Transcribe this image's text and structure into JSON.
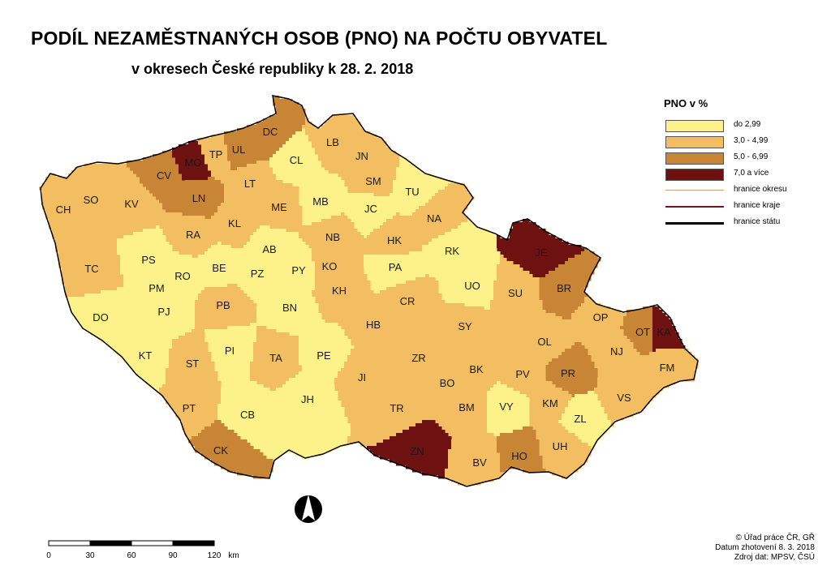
{
  "title": "PODÍL NEZAMĚSTNANÝCH OSOB (PNO) NA POČTU OBYVATEL",
  "subtitle": "v okresech České republiky k 28. 2. 2018",
  "colors": {
    "c1": "#fdf28a",
    "c2": "#f3be62",
    "c3": "#c98536",
    "c4": "#6e1111",
    "district_border": "#c9a080",
    "region_border": "#6a1a1a",
    "state_border": "#000000"
  },
  "legend": {
    "title": "PNO v %",
    "classes": [
      {
        "label": "do 2,99",
        "color": "#fdf28a"
      },
      {
        "label": "3,0  -  4,99",
        "color": "#f3be62"
      },
      {
        "label": "5,0  -  6,99",
        "color": "#c98536"
      },
      {
        "label": "7,0 a více",
        "color": "#6e1111"
      }
    ],
    "lines": [
      {
        "label": "hranice okresu",
        "color": "#c9a080",
        "width": 1
      },
      {
        "label": "hranice kraje",
        "color": "#6a1a1a",
        "width": 1.5
      },
      {
        "label": "hranice státu",
        "color": "#000000",
        "width": 3
      }
    ]
  },
  "scale": {
    "ticks": [
      "0",
      "30",
      "60",
      "90",
      "120"
    ],
    "unit": "km"
  },
  "source": [
    "© Úřad práce ČR, GŘ",
    "Datum zhotovení 8. 3. 2018",
    "Zdroj dat: MPSV, ČSÚ"
  ],
  "districts": [
    {
      "code": "CH",
      "class": 2
    },
    {
      "code": "SO",
      "class": 2
    },
    {
      "code": "KV",
      "class": 2
    },
    {
      "code": "CV",
      "class": 3
    },
    {
      "code": "MO",
      "class": 4
    },
    {
      "code": "TP",
      "class": 2
    },
    {
      "code": "UL",
      "class": 3
    },
    {
      "code": "DC",
      "class": 3
    },
    {
      "code": "LN",
      "class": 3
    },
    {
      "code": "LT",
      "class": 2
    },
    {
      "code": "CL",
      "class": 1
    },
    {
      "code": "LB",
      "class": 2
    },
    {
      "code": "JN",
      "class": 2
    },
    {
      "code": "SM",
      "class": 2
    },
    {
      "code": "TU",
      "class": 1
    },
    {
      "code": "MB",
      "class": 1
    },
    {
      "code": "ME",
      "class": 2
    },
    {
      "code": "KL",
      "class": 2
    },
    {
      "code": "JC",
      "class": 1
    },
    {
      "code": "NA",
      "class": 2
    },
    {
      "code": "RA",
      "class": 2
    },
    {
      "code": "AB",
      "class": 1
    },
    {
      "code": "NB",
      "class": 2
    },
    {
      "code": "HK",
      "class": 2
    },
    {
      "code": "RK",
      "class": 1
    },
    {
      "code": "JE",
      "class": 4
    },
    {
      "code": "TC",
      "class": 2
    },
    {
      "code": "PS",
      "class": 1
    },
    {
      "code": "RO",
      "class": 1
    },
    {
      "code": "BE",
      "class": 1
    },
    {
      "code": "PZ",
      "class": 1
    },
    {
      "code": "PY",
      "class": 1
    },
    {
      "code": "KO",
      "class": 2
    },
    {
      "code": "PA",
      "class": 1
    },
    {
      "code": "UO",
      "class": 1
    },
    {
      "code": "BR",
      "class": 3
    },
    {
      "code": "PM",
      "class": 1
    },
    {
      "code": "PJ",
      "class": 1
    },
    {
      "code": "KH",
      "class": 2
    },
    {
      "code": "SU",
      "class": 2
    },
    {
      "code": "DO",
      "class": 1
    },
    {
      "code": "PB",
      "class": 2
    },
    {
      "code": "BN",
      "class": 1
    },
    {
      "code": "CR",
      "class": 2
    },
    {
      "code": "OP",
      "class": 2
    },
    {
      "code": "HB",
      "class": 2
    },
    {
      "code": "SY",
      "class": 2
    },
    {
      "code": "OT",
      "class": 3
    },
    {
      "code": "KA",
      "class": 4
    },
    {
      "code": "OL",
      "class": 2
    },
    {
      "code": "KT",
      "class": 1
    },
    {
      "code": "PI",
      "class": 1
    },
    {
      "code": "TA",
      "class": 2
    },
    {
      "code": "PE",
      "class": 1
    },
    {
      "code": "NJ",
      "class": 2
    },
    {
      "code": "ST",
      "class": 2
    },
    {
      "code": "ZR",
      "class": 2
    },
    {
      "code": "BK",
      "class": 2
    },
    {
      "code": "FM",
      "class": 2
    },
    {
      "code": "PR",
      "class": 3
    },
    {
      "code": "PV",
      "class": 2
    },
    {
      "code": "JI",
      "class": 2
    },
    {
      "code": "BO",
      "class": 2
    },
    {
      "code": "JH",
      "class": 1
    },
    {
      "code": "VS",
      "class": 2
    },
    {
      "code": "KM",
      "class": 2
    },
    {
      "code": "PT",
      "class": 2
    },
    {
      "code": "CB",
      "class": 1
    },
    {
      "code": "TR",
      "class": 2
    },
    {
      "code": "BM",
      "class": 2
    },
    {
      "code": "VY",
      "class": 1
    },
    {
      "code": "ZL",
      "class": 1
    },
    {
      "code": "UH",
      "class": 2
    },
    {
      "code": "CK",
      "class": 3
    },
    {
      "code": "ZN",
      "class": 4
    },
    {
      "code": "BV",
      "class": 2
    },
    {
      "code": "HO",
      "class": 3
    }
  ]
}
